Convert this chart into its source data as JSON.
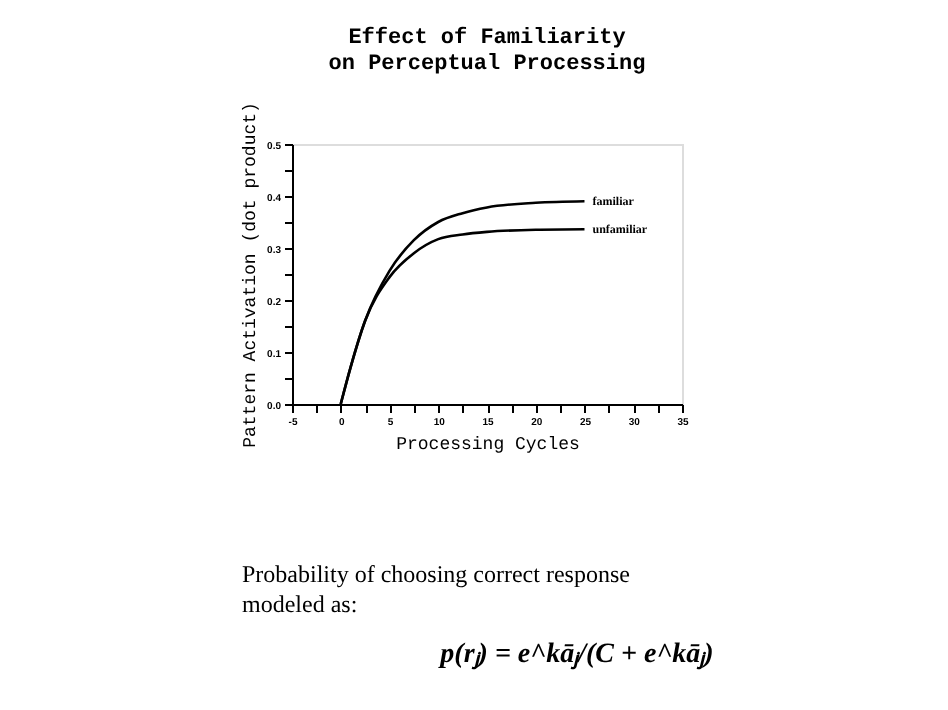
{
  "chart_data": {
    "type": "line",
    "title": "Effect of Familiarity\non Perceptual Processing",
    "xlabel": "Processing Cycles",
    "ylabel": "Pattern Activation (dot product)",
    "x": [
      0,
      1,
      2.5,
      5,
      7.5,
      10,
      12.5,
      15,
      20,
      25
    ],
    "series": [
      {
        "name": "familiar",
        "color": "#000000",
        "values": [
          0,
          0.07,
          0.16,
          0.256,
          0.315,
          0.35,
          0.367,
          0.378,
          0.387,
          0.39
        ]
      },
      {
        "name": "unfamiliar",
        "color": "#000000",
        "values": [
          0,
          0.07,
          0.16,
          0.244,
          0.29,
          0.317,
          0.326,
          0.331,
          0.335,
          0.336
        ]
      }
    ],
    "xlim": [
      -5,
      35
    ],
    "ylim": [
      0,
      0.5
    ],
    "xticks": [
      -5,
      {
        "value": -2.5,
        "label": null
      },
      0,
      {
        "value": 2.5,
        "label": null
      },
      5,
      {
        "value": 7.5,
        "label": null
      },
      10,
      {
        "value": 12.5,
        "label": null
      },
      15,
      {
        "value": 17.5,
        "label": null
      },
      20,
      {
        "value": 22.5,
        "label": null
      },
      25,
      {
        "value": 27.5,
        "label": null
      },
      30,
      {
        "value": 32.5,
        "label": null
      },
      35
    ],
    "yticks": [
      {
        "value": 0,
        "label": "0.0"
      },
      {
        "value": 0.05,
        "label": null
      },
      0.1,
      {
        "value": 0.15,
        "label": null
      },
      0.2,
      {
        "value": 0.25,
        "label": null
      },
      0.3,
      {
        "value": 0.35,
        "label": null
      },
      0.4,
      {
        "value": 0.45,
        "label": null
      },
      0.5
    ],
    "grid": false,
    "marker": "none",
    "line_style": "solid",
    "annotations": [
      "Probability of choosing correct response\nmodeled as:",
      "p(rⱼ) = e^kāⱼ/(C + e^kāⱼ)"
    ]
  }
}
